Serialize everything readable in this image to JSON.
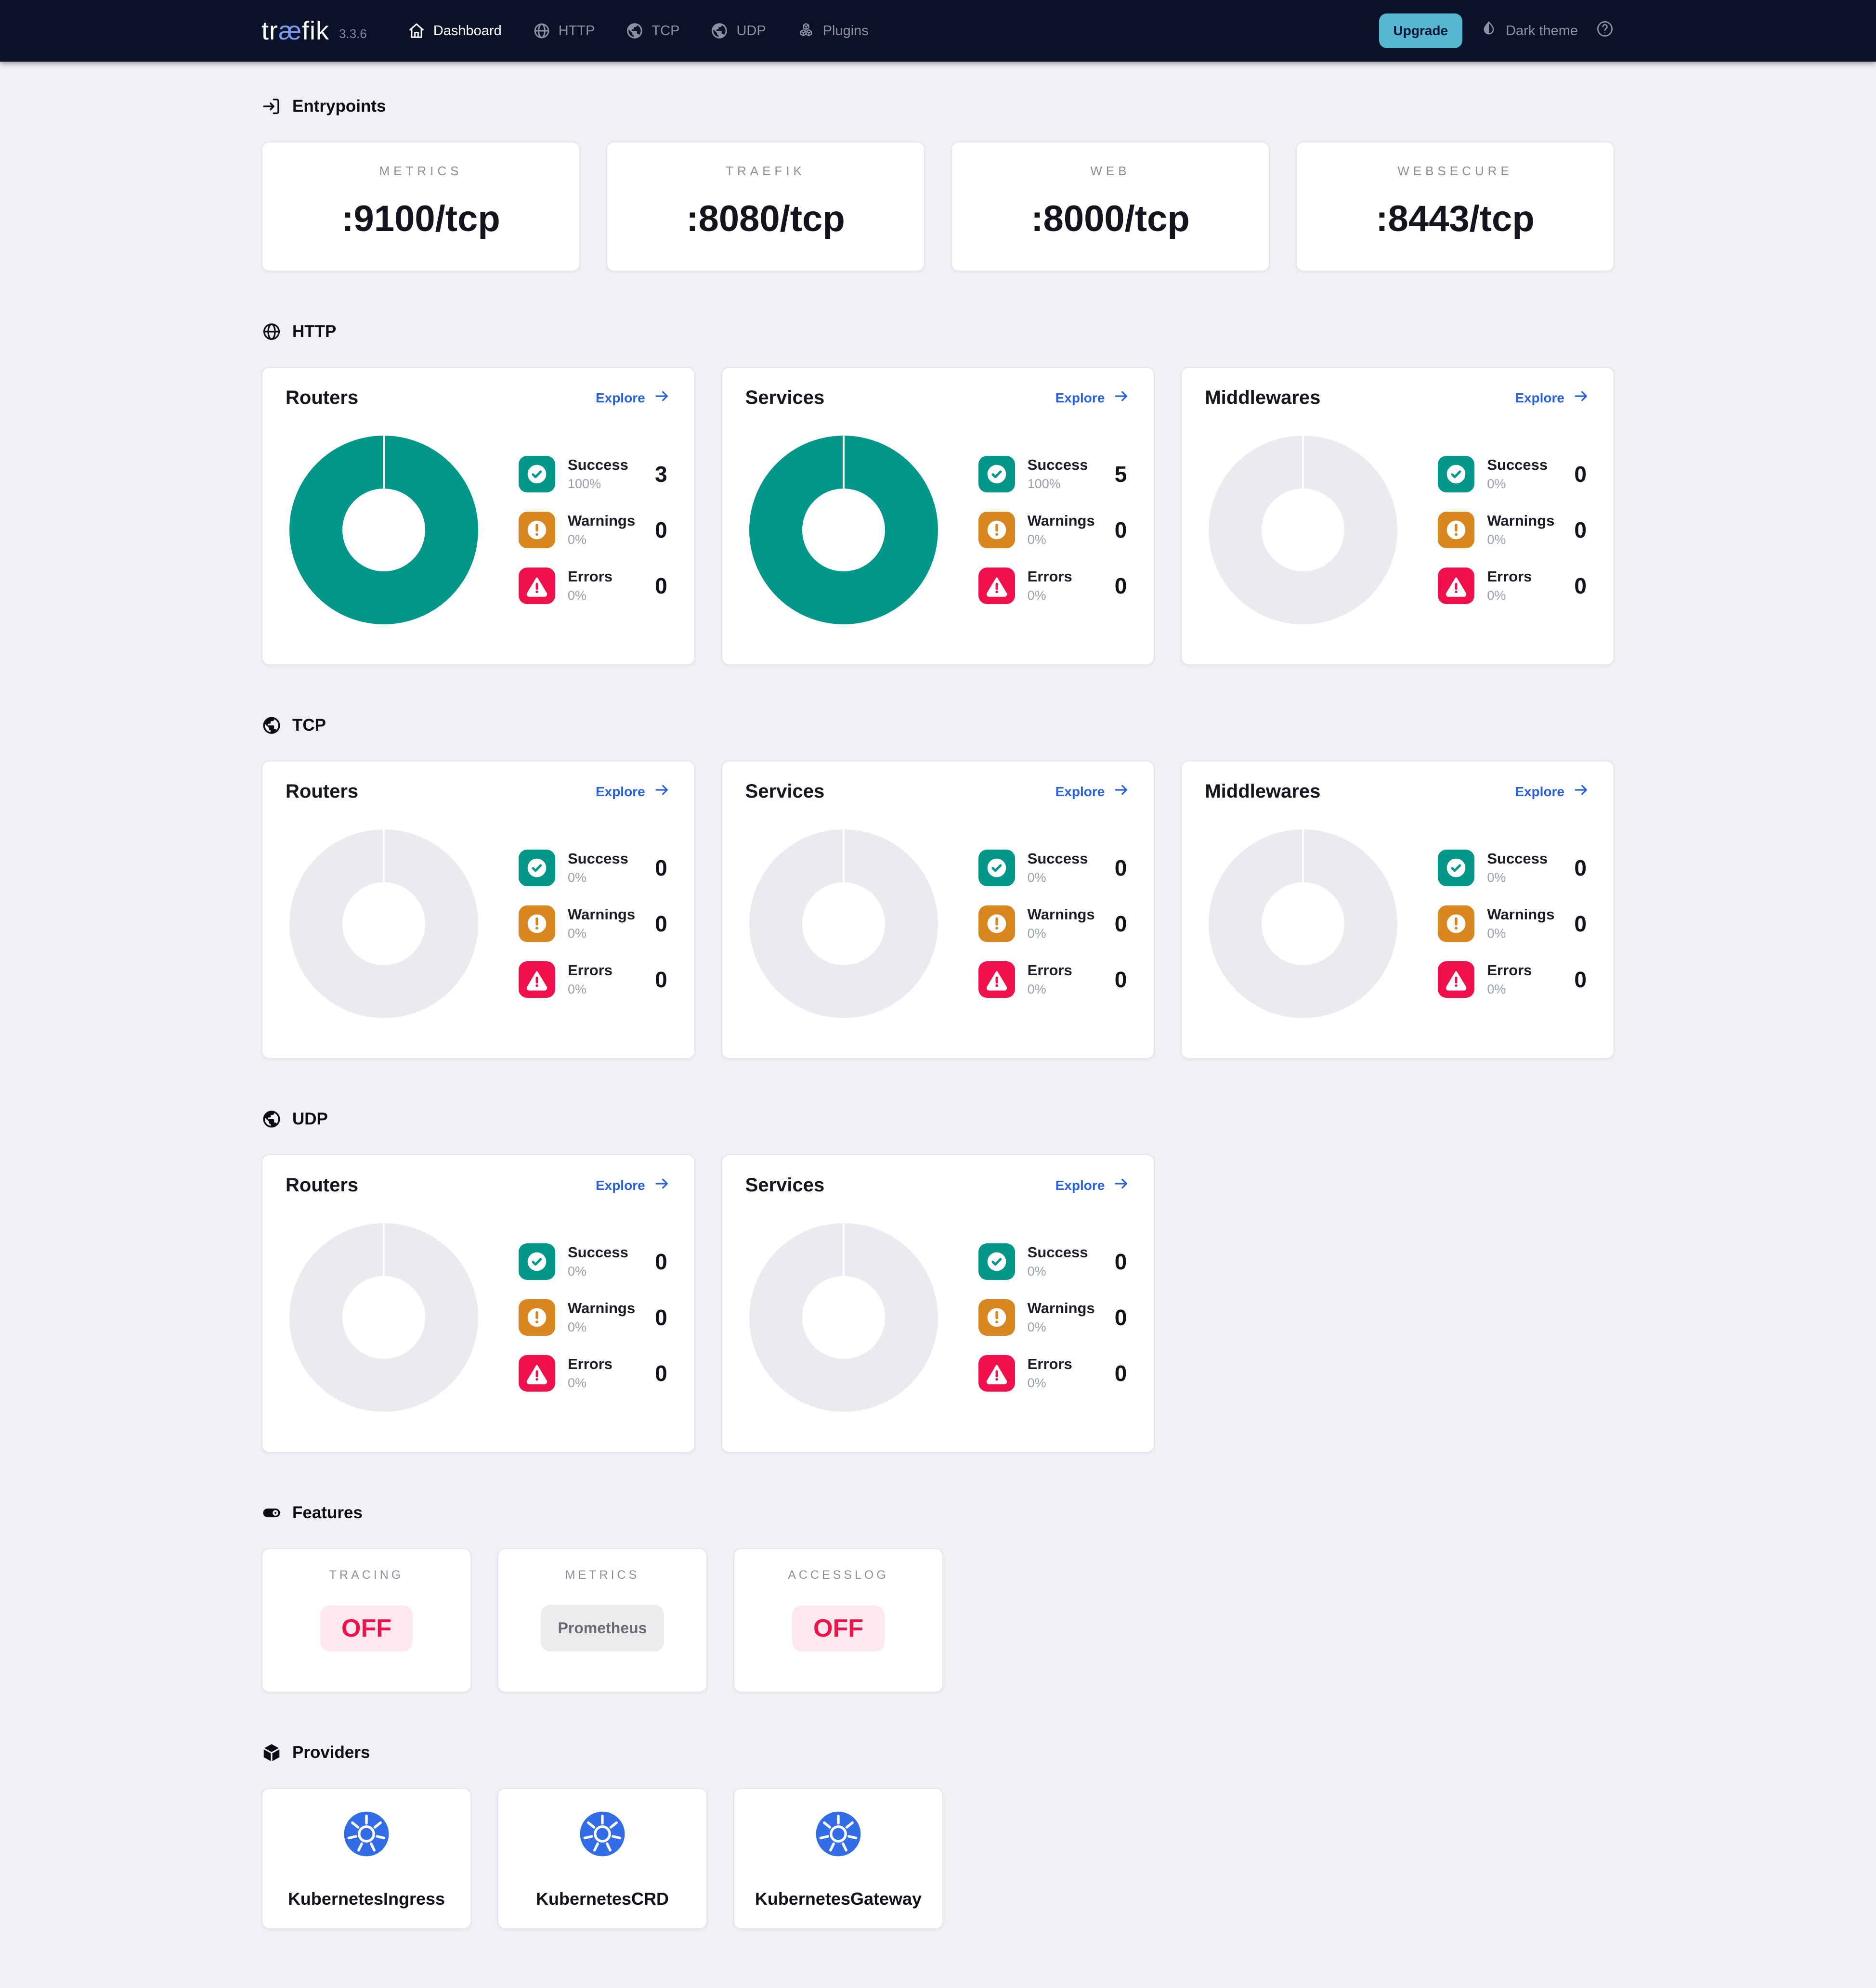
{
  "colors": {
    "navbar_bg": "#091226",
    "accent_teal": "#00968a",
    "warning_orange": "#d8861f",
    "error_red": "#f0104c",
    "link_blue": "#2761dd",
    "upgrade_blue": "#55b7d1",
    "kubernetes_blue": "#326de6",
    "donut_empty": "#e9ebee",
    "off_pill_bg": "#fce8ed",
    "logo_accent": "#7d9bf4"
  },
  "navbar": {
    "logo_tr": "tr",
    "logo_ae": "æ",
    "logo_fik": "fik",
    "version": "3.3.6",
    "items": [
      {
        "label": "Dashboard",
        "icon": "home-icon",
        "active": true
      },
      {
        "label": "HTTP",
        "icon": "globe-icon",
        "active": false
      },
      {
        "label": "TCP",
        "icon": "earth-icon",
        "active": false
      },
      {
        "label": "UDP",
        "icon": "earth-icon",
        "active": false
      },
      {
        "label": "Plugins",
        "icon": "cubes-icon",
        "active": false
      }
    ],
    "upgrade_label": "Upgrade",
    "theme_label": "Dark theme",
    "theme_icon": "contrast-icon",
    "help_icon": "help-icon"
  },
  "entrypoints": {
    "title": "Entrypoints",
    "icon": "login-icon",
    "cards": [
      {
        "label": "METRICS",
        "port": ":9100/tcp"
      },
      {
        "label": "TRAEFIK",
        "port": ":8080/tcp"
      },
      {
        "label": "WEB",
        "port": ":8000/tcp"
      },
      {
        "label": "WEBSECURE",
        "port": ":8443/tcp"
      }
    ]
  },
  "sections": [
    {
      "title": "HTTP",
      "icon": "globe-icon",
      "cards": [
        {
          "title": "Routers",
          "explore_label": "Explore",
          "donut_color": "#00968a",
          "legend": [
            {
              "icon": "success-icon",
              "name": "Success",
              "pct": "100%",
              "value": "3"
            },
            {
              "icon": "warning-icon",
              "name": "Warnings",
              "pct": "0%",
              "value": "0"
            },
            {
              "icon": "error-icon",
              "name": "Errors",
              "pct": "0%",
              "value": "0"
            }
          ]
        },
        {
          "title": "Services",
          "explore_label": "Explore",
          "donut_color": "#00968a",
          "legend": [
            {
              "icon": "success-icon",
              "name": "Success",
              "pct": "100%",
              "value": "5"
            },
            {
              "icon": "warning-icon",
              "name": "Warnings",
              "pct": "0%",
              "value": "0"
            },
            {
              "icon": "error-icon",
              "name": "Errors",
              "pct": "0%",
              "value": "0"
            }
          ]
        },
        {
          "title": "Middlewares",
          "explore_label": "Explore",
          "donut_color": "#e9ebee",
          "legend": [
            {
              "icon": "success-icon",
              "name": "Success",
              "pct": "0%",
              "value": "0"
            },
            {
              "icon": "warning-icon",
              "name": "Warnings",
              "pct": "0%",
              "value": "0"
            },
            {
              "icon": "error-icon",
              "name": "Errors",
              "pct": "0%",
              "value": "0"
            }
          ]
        }
      ]
    },
    {
      "title": "TCP",
      "icon": "earth-icon",
      "cards": [
        {
          "title": "Routers",
          "explore_label": "Explore",
          "donut_color": "#e9ebee",
          "legend": [
            {
              "icon": "success-icon",
              "name": "Success",
              "pct": "0%",
              "value": "0"
            },
            {
              "icon": "warning-icon",
              "name": "Warnings",
              "pct": "0%",
              "value": "0"
            },
            {
              "icon": "error-icon",
              "name": "Errors",
              "pct": "0%",
              "value": "0"
            }
          ]
        },
        {
          "title": "Services",
          "explore_label": "Explore",
          "donut_color": "#e9ebee",
          "legend": [
            {
              "icon": "success-icon",
              "name": "Success",
              "pct": "0%",
              "value": "0"
            },
            {
              "icon": "warning-icon",
              "name": "Warnings",
              "pct": "0%",
              "value": "0"
            },
            {
              "icon": "error-icon",
              "name": "Errors",
              "pct": "0%",
              "value": "0"
            }
          ]
        },
        {
          "title": "Middlewares",
          "explore_label": "Explore",
          "donut_color": "#e9ebee",
          "legend": [
            {
              "icon": "success-icon",
              "name": "Success",
              "pct": "0%",
              "value": "0"
            },
            {
              "icon": "warning-icon",
              "name": "Warnings",
              "pct": "0%",
              "value": "0"
            },
            {
              "icon": "error-icon",
              "name": "Errors",
              "pct": "0%",
              "value": "0"
            }
          ]
        }
      ]
    },
    {
      "title": "UDP",
      "icon": "earth-icon",
      "cards": [
        {
          "title": "Routers",
          "explore_label": "Explore",
          "donut_color": "#e9ebee",
          "legend": [
            {
              "icon": "success-icon",
              "name": "Success",
              "pct": "0%",
              "value": "0"
            },
            {
              "icon": "warning-icon",
              "name": "Warnings",
              "pct": "0%",
              "value": "0"
            },
            {
              "icon": "error-icon",
              "name": "Errors",
              "pct": "0%",
              "value": "0"
            }
          ]
        },
        {
          "title": "Services",
          "explore_label": "Explore",
          "donut_color": "#e9ebee",
          "legend": [
            {
              "icon": "success-icon",
              "name": "Success",
              "pct": "0%",
              "value": "0"
            },
            {
              "icon": "warning-icon",
              "name": "Warnings",
              "pct": "0%",
              "value": "0"
            },
            {
              "icon": "error-icon",
              "name": "Errors",
              "pct": "0%",
              "value": "0"
            }
          ]
        }
      ]
    }
  ],
  "features": {
    "title": "Features",
    "icon": "toggle-on-icon",
    "cards": [
      {
        "label": "TRACING",
        "value": "OFF",
        "state": "off"
      },
      {
        "label": "METRICS",
        "value": "Prometheus",
        "state": "neutral"
      },
      {
        "label": "ACCESSLOG",
        "value": "OFF",
        "state": "off"
      }
    ]
  },
  "providers": {
    "title": "Providers",
    "icon": "package-icon",
    "cards": [
      {
        "name": "KubernetesIngress",
        "icon": "kubernetes-icon"
      },
      {
        "name": "KubernetesCRD",
        "icon": "kubernetes-icon"
      },
      {
        "name": "KubernetesGateway",
        "icon": "kubernetes-icon"
      }
    ]
  }
}
